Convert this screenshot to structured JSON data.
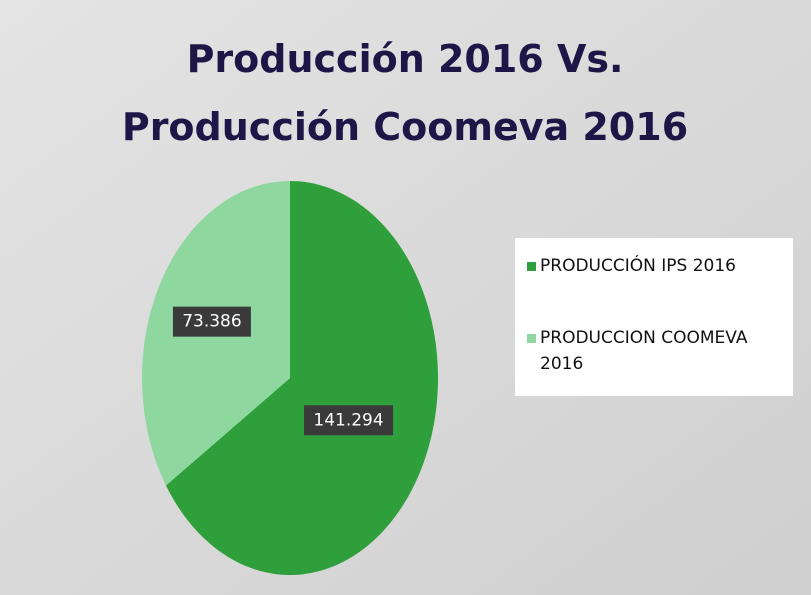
{
  "chart_data": {
    "type": "pie",
    "title": [
      "Producción 2016  Vs.",
      "Producción  Coomeva   2016"
    ],
    "categories": [
      "PRODUCCIÓN IPS 2016",
      "PRODUCCION COOMEVA 2016"
    ],
    "values": [
      141294,
      73386
    ],
    "value_labels": [
      "141.294",
      "73.386"
    ],
    "colors": [
      "#2f9f3c",
      "#8ed8a0"
    ],
    "legend": "right"
  }
}
